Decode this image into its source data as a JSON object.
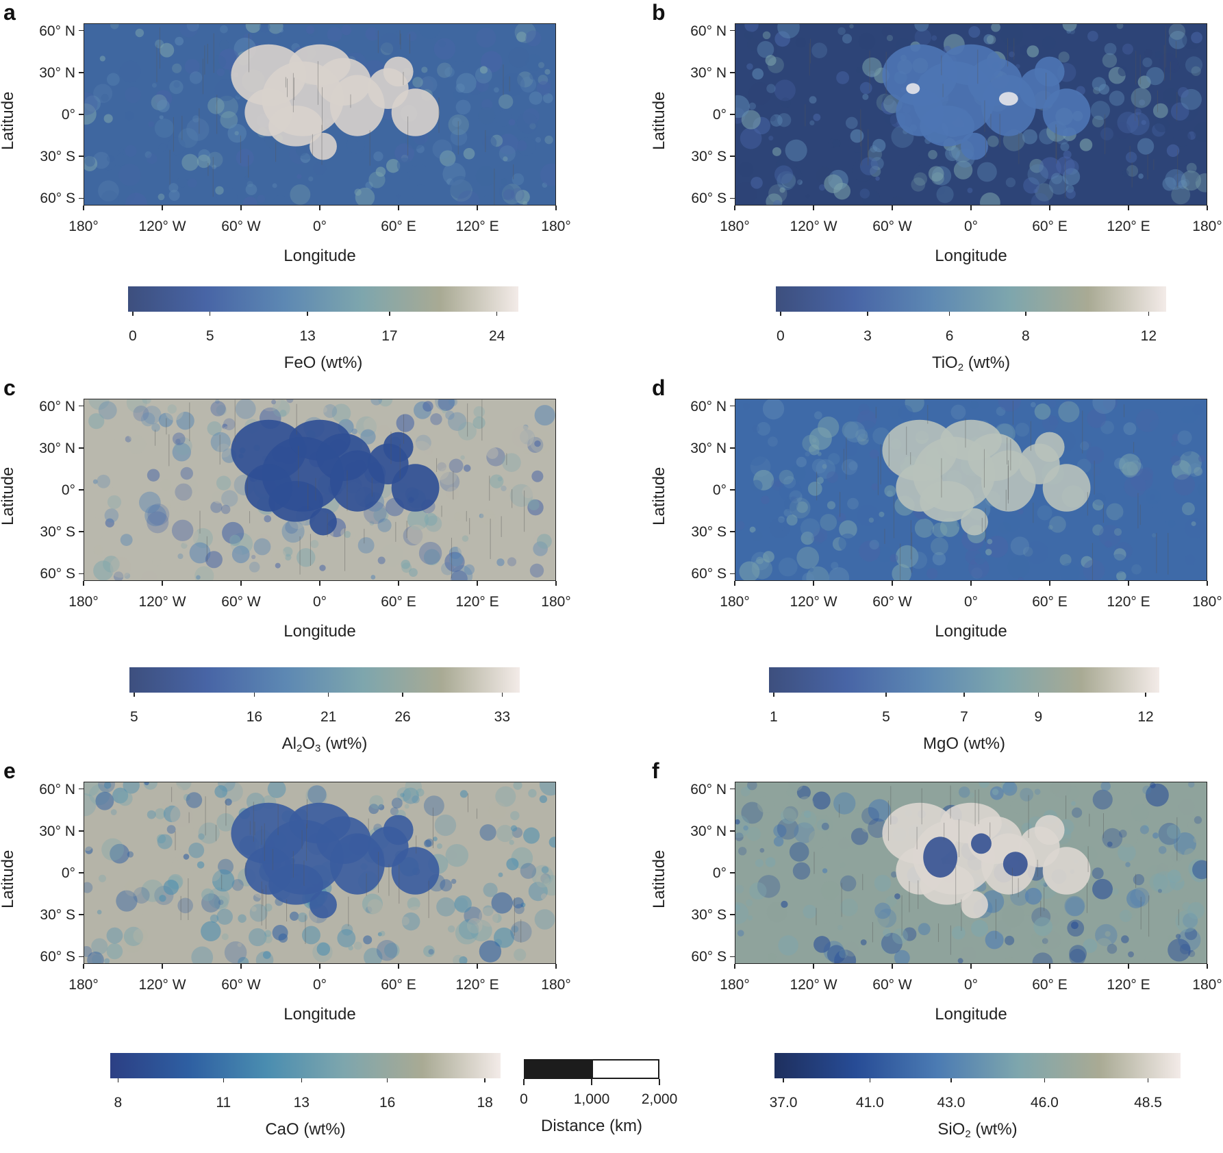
{
  "panels": [
    {
      "id": "a",
      "letter": "a",
      "title_main": "FeO",
      "title_sub": "",
      "title_rest": " (wt%)",
      "ticks": [
        {
          "v": "0",
          "p": 0.012
        },
        {
          "v": "5",
          "p": 0.21
        },
        {
          "v": "13",
          "p": 0.46
        },
        {
          "v": "17",
          "p": 0.67
        },
        {
          "v": "24",
          "p": 0.945
        }
      ],
      "colors": [
        "#3d4f7e",
        "#4865a6",
        "#5d88b3",
        "#7ea6ad",
        "#a9aa94",
        "#f3ebe8"
      ]
    },
    {
      "id": "b",
      "letter": "b",
      "title_main": "TiO",
      "title_sub": "2",
      "title_rest": " (wt%)",
      "ticks": [
        {
          "v": "0",
          "p": 0.012
        },
        {
          "v": "3",
          "p": 0.235
        },
        {
          "v": "6",
          "p": 0.445
        },
        {
          "v": "8",
          "p": 0.64
        },
        {
          "v": "12",
          "p": 0.955
        }
      ],
      "colors": [
        "#3d4f7e",
        "#4865a6",
        "#5d88b3",
        "#7ea6ad",
        "#a9aa94",
        "#f3ebe8"
      ]
    },
    {
      "id": "c",
      "letter": "c",
      "title_main": "Al",
      "title_sub": "2",
      "title_mid": "O",
      "title_sub2": "3",
      "title_rest": " (wt%)",
      "ticks": [
        {
          "v": "5",
          "p": 0.012
        },
        {
          "v": "16",
          "p": 0.32
        },
        {
          "v": "21",
          "p": 0.51
        },
        {
          "v": "26",
          "p": 0.7
        },
        {
          "v": "33",
          "p": 0.955
        }
      ],
      "colors": [
        "#3d4f7e",
        "#4865a6",
        "#5d88b3",
        "#7ea6ad",
        "#a9aa94",
        "#f3ebe8"
      ]
    },
    {
      "id": "d",
      "letter": "d",
      "title_main": "MgO",
      "title_sub": "",
      "title_rest": " (wt%)",
      "ticks": [
        {
          "v": "1",
          "p": 0.012
        },
        {
          "v": "5",
          "p": 0.3
        },
        {
          "v": "7",
          "p": 0.5
        },
        {
          "v": "9",
          "p": 0.69
        },
        {
          "v": "12",
          "p": 0.965
        }
      ],
      "colors": [
        "#3d4f7e",
        "#4865a6",
        "#5d88b3",
        "#7ea6ad",
        "#a9aa94",
        "#f3ebe8"
      ]
    },
    {
      "id": "e",
      "letter": "e",
      "title_main": "CaO",
      "title_sub": "",
      "title_rest": " (wt%)",
      "ticks": [
        {
          "v": "8",
          "p": 0.02
        },
        {
          "v": "11",
          "p": 0.29
        },
        {
          "v": "13",
          "p": 0.49
        },
        {
          "v": "16",
          "p": 0.71
        },
        {
          "v": "18",
          "p": 0.96
        }
      ],
      "colors": [
        "#2c3f84",
        "#2e5fa2",
        "#4a8db0",
        "#7ea6ad",
        "#a9aa94",
        "#f3ebe8"
      ]
    },
    {
      "id": "f",
      "letter": "f",
      "title_main": "SiO",
      "title_sub": "2",
      "title_rest": " (wt%)",
      "ticks": [
        {
          "v": "37.0",
          "p": 0.022
        },
        {
          "v": "41.0",
          "p": 0.235
        },
        {
          "v": "43.0",
          "p": 0.435
        },
        {
          "v": "46.0",
          "p": 0.665
        },
        {
          "v": "48.5",
          "p": 0.92
        }
      ],
      "colors": [
        "#1e2f5e",
        "#274c96",
        "#4b7bb3",
        "#7ea6ad",
        "#a9aa94",
        "#f3ebe8"
      ]
    }
  ],
  "axes": {
    "lat_labels": [
      "60° N",
      "30° N",
      "0°",
      "30° S",
      "60° S"
    ],
    "lon_labels": [
      "180°",
      "120° W",
      "60° W",
      "0°",
      "60° E",
      "120° E",
      "180°"
    ],
    "x_title": "Longitude",
    "y_title": "Latitude"
  },
  "scale_bar": {
    "labels": [
      "0",
      "1,000",
      "2,000"
    ],
    "title": "Distance (km)"
  }
}
